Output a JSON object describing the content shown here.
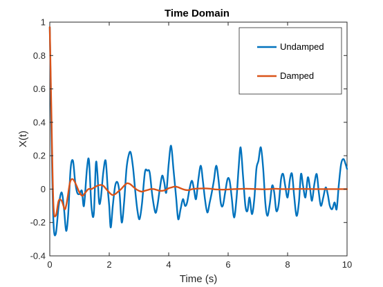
{
  "chart_data": {
    "type": "line",
    "title": "Time Domain",
    "xlabel": "Time (s)",
    "ylabel": "X(t)",
    "xlim": [
      0,
      10
    ],
    "ylim": [
      -0.4,
      1
    ],
    "xticks": [
      0,
      2,
      4,
      6,
      8,
      10
    ],
    "xtick_labels": [
      "0",
      "2",
      "4",
      "6",
      "8",
      "10"
    ],
    "yticks": [
      -0.4,
      -0.2,
      0,
      0.2,
      0.4,
      0.6,
      0.8,
      1
    ],
    "ytick_labels": [
      "-0.4",
      "-0.2",
      "0",
      "0.2",
      "0.4",
      "0.6",
      "0.8",
      "1"
    ],
    "grid": false,
    "legend_position": "top-right",
    "series": [
      {
        "name": "Undamped",
        "color": "#0072BD",
        "x": [
          0,
          0.05,
          0.12,
          0.2,
          0.3,
          0.4,
          0.48,
          0.55,
          0.62,
          0.7,
          0.78,
          0.85,
          0.92,
          1.0,
          1.08,
          1.15,
          1.25,
          1.32,
          1.4,
          1.48,
          1.55,
          1.6,
          1.66,
          1.72,
          1.8,
          1.88,
          1.95,
          2.0,
          2.05,
          2.12,
          2.2,
          2.28,
          2.35,
          2.42,
          2.5,
          2.58,
          2.65,
          2.72,
          2.8,
          2.88,
          2.95,
          3.02,
          3.1,
          3.2,
          3.28,
          3.36,
          3.45,
          3.55,
          3.62,
          3.7,
          3.78,
          3.85,
          3.92,
          4.0,
          4.08,
          4.16,
          4.25,
          4.32,
          4.4,
          4.48,
          4.55,
          4.62,
          4.7,
          4.78,
          4.85,
          4.92,
          5.0,
          5.08,
          5.15,
          5.22,
          5.3,
          5.38,
          5.45,
          5.52,
          5.6,
          5.68,
          5.75,
          5.82,
          5.9,
          5.98,
          6.05,
          6.12,
          6.2,
          6.28,
          6.35,
          6.42,
          6.5,
          6.58,
          6.65,
          6.72,
          6.8,
          6.88,
          6.95,
          7.02,
          7.1,
          7.18,
          7.25,
          7.32,
          7.4,
          7.48,
          7.55,
          7.62,
          7.7,
          7.78,
          7.85,
          7.92,
          8.0,
          8.08,
          8.15,
          8.22,
          8.3,
          8.38,
          8.45,
          8.52,
          8.6,
          8.68,
          8.75,
          8.82,
          8.9,
          8.98,
          9.05,
          9.12,
          9.2,
          9.28,
          9.35,
          9.42,
          9.5,
          9.58,
          9.65,
          9.72,
          9.8,
          9.88,
          9.95,
          10.0
        ],
        "y": [
          0.97,
          0.4,
          -0.18,
          -0.27,
          -0.1,
          -0.02,
          -0.12,
          -0.25,
          -0.15,
          0.12,
          0.17,
          0.05,
          -0.02,
          -0.03,
          -0.01,
          -0.1,
          0.12,
          0.17,
          -0.1,
          -0.15,
          0.15,
          0.1,
          -0.08,
          -0.05,
          0.1,
          0.17,
          0.0,
          -0.1,
          -0.23,
          -0.1,
          0.02,
          0.04,
          -0.03,
          -0.2,
          -0.08,
          0.12,
          0.2,
          0.22,
          0.13,
          -0.02,
          -0.13,
          -0.18,
          -0.09,
          0.1,
          0.11,
          0.1,
          -0.04,
          -0.14,
          -0.1,
          0.0,
          0.08,
          0.04,
          -0.02,
          0.15,
          0.26,
          0.12,
          -0.05,
          -0.18,
          -0.12,
          -0.06,
          -0.1,
          -0.08,
          0.0,
          0.05,
          0.0,
          -0.06,
          0.06,
          0.14,
          0.05,
          -0.06,
          -0.14,
          -0.08,
          -0.02,
          0.05,
          0.14,
          0.05,
          -0.08,
          -0.1,
          -0.02,
          0.06,
          0.05,
          -0.05,
          -0.17,
          -0.06,
          0.12,
          0.25,
          0.08,
          -0.1,
          -0.13,
          -0.05,
          -0.15,
          -0.06,
          0.12,
          0.17,
          0.25,
          0.12,
          -0.08,
          -0.16,
          -0.09,
          0.02,
          -0.02,
          -0.13,
          -0.09,
          0.06,
          0.09,
          0.02,
          -0.05,
          0.06,
          0.09,
          -0.04,
          -0.16,
          -0.08,
          0.09,
          0.02,
          -0.05,
          0.07,
          0.01,
          -0.07,
          0.03,
          0.09,
          -0.02,
          -0.1,
          -0.05,
          0.01,
          -0.03,
          -0.1,
          -0.12,
          -0.08,
          -0.12,
          0.02,
          0.15,
          0.18,
          0.15,
          0.12
        ]
      },
      {
        "name": "Damped",
        "color": "#D95319",
        "x": [
          0,
          0.05,
          0.12,
          0.2,
          0.3,
          0.4,
          0.5,
          0.55,
          0.6,
          0.68,
          0.75,
          0.82,
          0.9,
          1.0,
          1.1,
          1.2,
          1.3,
          1.4,
          1.5,
          1.6,
          1.7,
          1.8,
          1.9,
          2.0,
          2.1,
          2.2,
          2.3,
          2.4,
          2.5,
          2.6,
          2.7,
          2.8,
          2.9,
          3.0,
          3.1,
          3.2,
          3.3,
          3.4,
          3.5,
          3.6,
          3.7,
          3.8,
          3.9,
          4.0,
          4.1,
          4.2,
          4.3,
          4.4,
          4.5,
          4.6,
          4.7,
          4.8,
          5.0,
          5.2,
          5.4,
          5.6,
          5.8,
          6.0,
          6.2,
          6.4,
          6.6,
          6.8,
          7.0,
          7.2,
          7.4,
          7.6,
          7.8,
          8.0,
          8.5,
          9.0,
          9.5,
          10.0
        ],
        "y": [
          0.97,
          0.5,
          -0.08,
          -0.16,
          -0.07,
          -0.07,
          -0.12,
          -0.1,
          -0.05,
          0.04,
          0.06,
          0.05,
          0.02,
          -0.02,
          -0.04,
          -0.02,
          0.0,
          0.0,
          0.01,
          0.02,
          0.025,
          0.02,
          0.0,
          -0.02,
          -0.035,
          -0.03,
          -0.015,
          0.0,
          0.02,
          0.035,
          0.03,
          0.015,
          0.0,
          -0.01,
          -0.015,
          -0.01,
          -0.005,
          0.0,
          0.0,
          -0.005,
          -0.01,
          -0.01,
          -0.005,
          0.005,
          0.01,
          0.015,
          0.012,
          0.005,
          -0.002,
          -0.006,
          -0.005,
          0.0,
          0.003,
          0.004,
          0.002,
          -0.002,
          -0.003,
          -0.002,
          0.0,
          0.001,
          0.002,
          0.001,
          0.0,
          -0.001,
          0.0,
          0.002,
          0.0,
          0.0,
          0.001,
          0.0,
          0.0,
          0.0
        ]
      }
    ]
  }
}
